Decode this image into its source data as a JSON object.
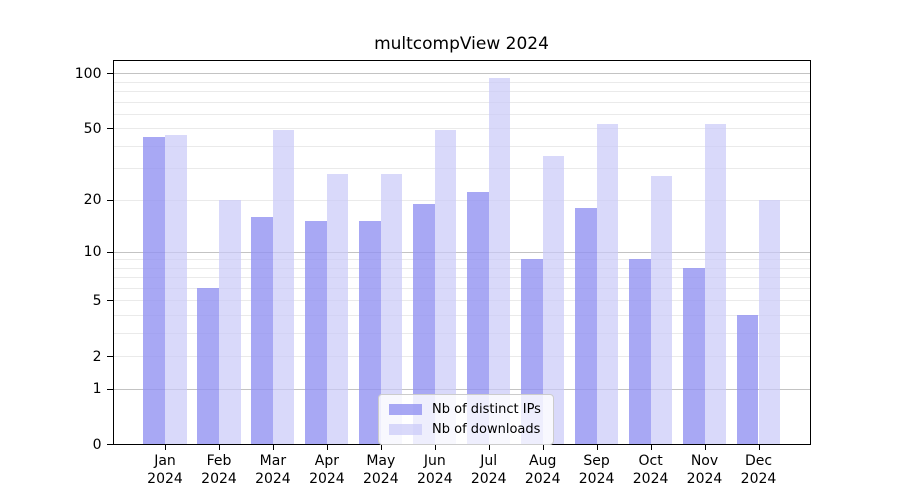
{
  "chart_data": {
    "type": "bar",
    "title": "multcompView 2024",
    "categories": [
      "Jan",
      "Feb",
      "Mar",
      "Apr",
      "May",
      "Jun",
      "Jul",
      "Aug",
      "Sep",
      "Oct",
      "Nov",
      "Dec"
    ],
    "year": "2024",
    "series": [
      {
        "name": "Nb of distinct IPs",
        "color": "#9292f1",
        "opacity": 0.8,
        "values": [
          45,
          6,
          16,
          15,
          15,
          19,
          22,
          9,
          18,
          9,
          8,
          4
        ]
      },
      {
        "name": "Nb of downloads",
        "color": "#c9c9f8",
        "opacity": 0.7,
        "values": [
          46,
          20,
          49,
          28,
          28,
          49,
          94,
          35,
          53,
          27,
          53,
          20
        ]
      }
    ],
    "xlabel": "",
    "ylabel": "",
    "y_ticks": [
      100,
      50,
      20,
      10,
      5,
      2,
      1,
      0
    ],
    "y_scale": "log1p",
    "ylim": [
      0,
      118
    ],
    "grid": true,
    "grid_major_values": [
      1,
      10,
      100
    ],
    "grid_minor_values": [
      2,
      3,
      4,
      5,
      6,
      7,
      8,
      9,
      20,
      30,
      40,
      50,
      60,
      70,
      80,
      90
    ],
    "legend_position": "lower center",
    "colors": {
      "major_grid": "#c3c3c3",
      "minor_grid": "#eaeaea",
      "spine": "#000000",
      "background": "#ffffff"
    }
  }
}
